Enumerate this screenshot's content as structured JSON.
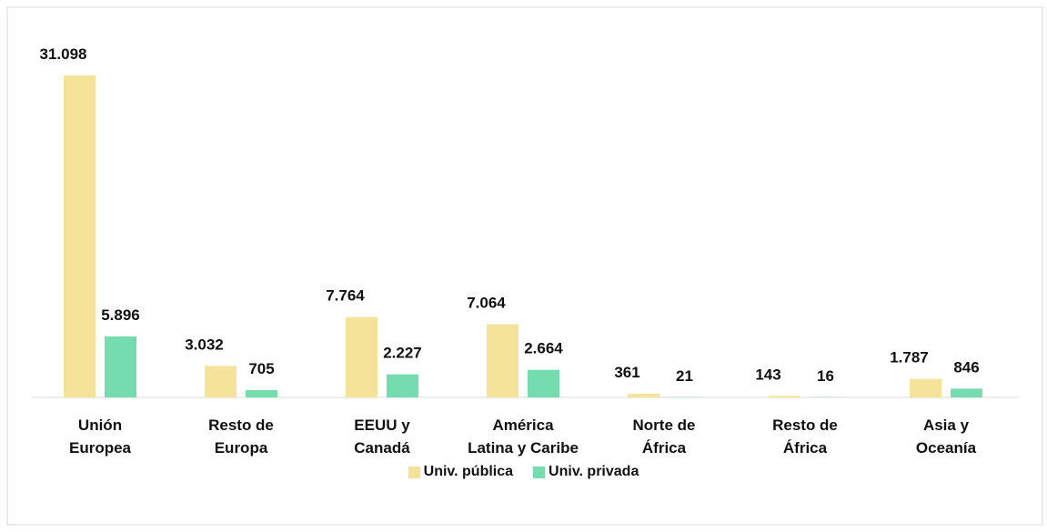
{
  "chart_data": {
    "type": "bar",
    "categories": [
      "Unión\nEuropea",
      "Resto de\nEuropa",
      "EEUU y\nCanadá",
      "América\nLatina y Caribe",
      "Norte de\nÁfrica",
      "Resto de\nÁfrica",
      "Asia y\nOceanía"
    ],
    "series": [
      {
        "name": "Univ. pública",
        "color": "#f5e39a",
        "values": [
          31098,
          3032,
          7764,
          7064,
          361,
          143,
          1787
        ],
        "value_labels": [
          "31.098",
          "3.032",
          "7.764",
          "7.064",
          "361",
          "143",
          "1.787"
        ]
      },
      {
        "name": "Univ. privada",
        "color": "#74dcae",
        "values": [
          5896,
          705,
          2227,
          2664,
          21,
          16,
          846
        ],
        "value_labels": [
          "5.896",
          "705",
          "2.227",
          "2.664",
          "21",
          "16",
          "846"
        ]
      }
    ],
    "legend": "bottom"
  }
}
